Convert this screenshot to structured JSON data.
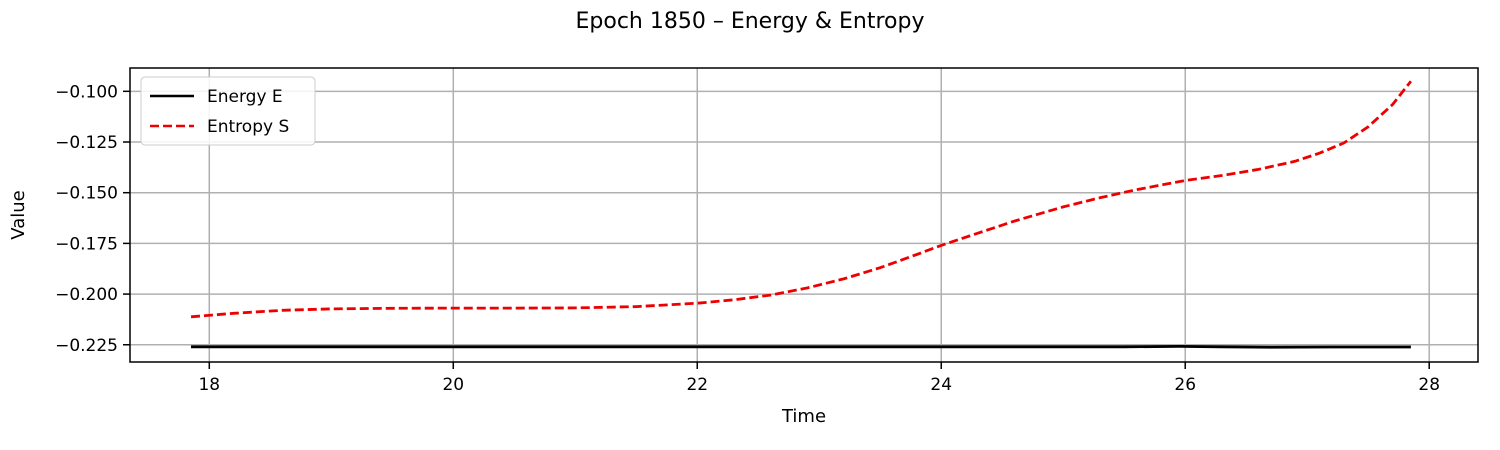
{
  "chart_data": {
    "type": "line",
    "title": "Epoch 1850 – Energy & Entropy",
    "xlabel": "Time",
    "ylabel": "Value",
    "xlim": [
      17.35,
      28.4
    ],
    "ylim": [
      -0.2335,
      -0.0885
    ],
    "xticks": [
      18,
      20,
      22,
      24,
      26,
      28
    ],
    "yticks": [
      -0.225,
      -0.2,
      -0.175,
      -0.15,
      -0.125,
      -0.1
    ],
    "ytick_labels": [
      "−0.225",
      "−0.200",
      "−0.175",
      "−0.150",
      "−0.125",
      "−0.100"
    ],
    "grid": true,
    "legend_position": "top-left",
    "series": [
      {
        "name": "Energy E",
        "color": "#000000",
        "style": "solid",
        "x": [
          17.85,
          19,
          20,
          21,
          22,
          23,
          24,
          25,
          25.5,
          25.95,
          26.3,
          26.7,
          27.2,
          27.85
        ],
        "y": [
          -0.226,
          -0.226,
          -0.226,
          -0.226,
          -0.226,
          -0.226,
          -0.226,
          -0.226,
          -0.226,
          -0.2258,
          -0.226,
          -0.2262,
          -0.2261,
          -0.2261
        ]
      },
      {
        "name": "Entropy S",
        "color": "#ee0000",
        "style": "dashed",
        "x": [
          17.85,
          18.2,
          18.6,
          19.0,
          19.5,
          20.0,
          20.5,
          21.0,
          21.5,
          22.0,
          22.3,
          22.6,
          22.9,
          23.2,
          23.5,
          23.8,
          24.0,
          24.3,
          24.6,
          25.0,
          25.3,
          25.6,
          26.0,
          26.3,
          26.6,
          26.9,
          27.1,
          27.3,
          27.5,
          27.7,
          27.85
        ],
        "y": [
          -0.2112,
          -0.2095,
          -0.208,
          -0.2073,
          -0.207,
          -0.2069,
          -0.2069,
          -0.2068,
          -0.2062,
          -0.2045,
          -0.2028,
          -0.2005,
          -0.197,
          -0.1925,
          -0.187,
          -0.1805,
          -0.176,
          -0.17,
          -0.164,
          -0.157,
          -0.1525,
          -0.1485,
          -0.144,
          -0.1415,
          -0.1385,
          -0.1345,
          -0.1305,
          -0.1255,
          -0.1175,
          -0.1065,
          -0.095
        ]
      }
    ]
  }
}
